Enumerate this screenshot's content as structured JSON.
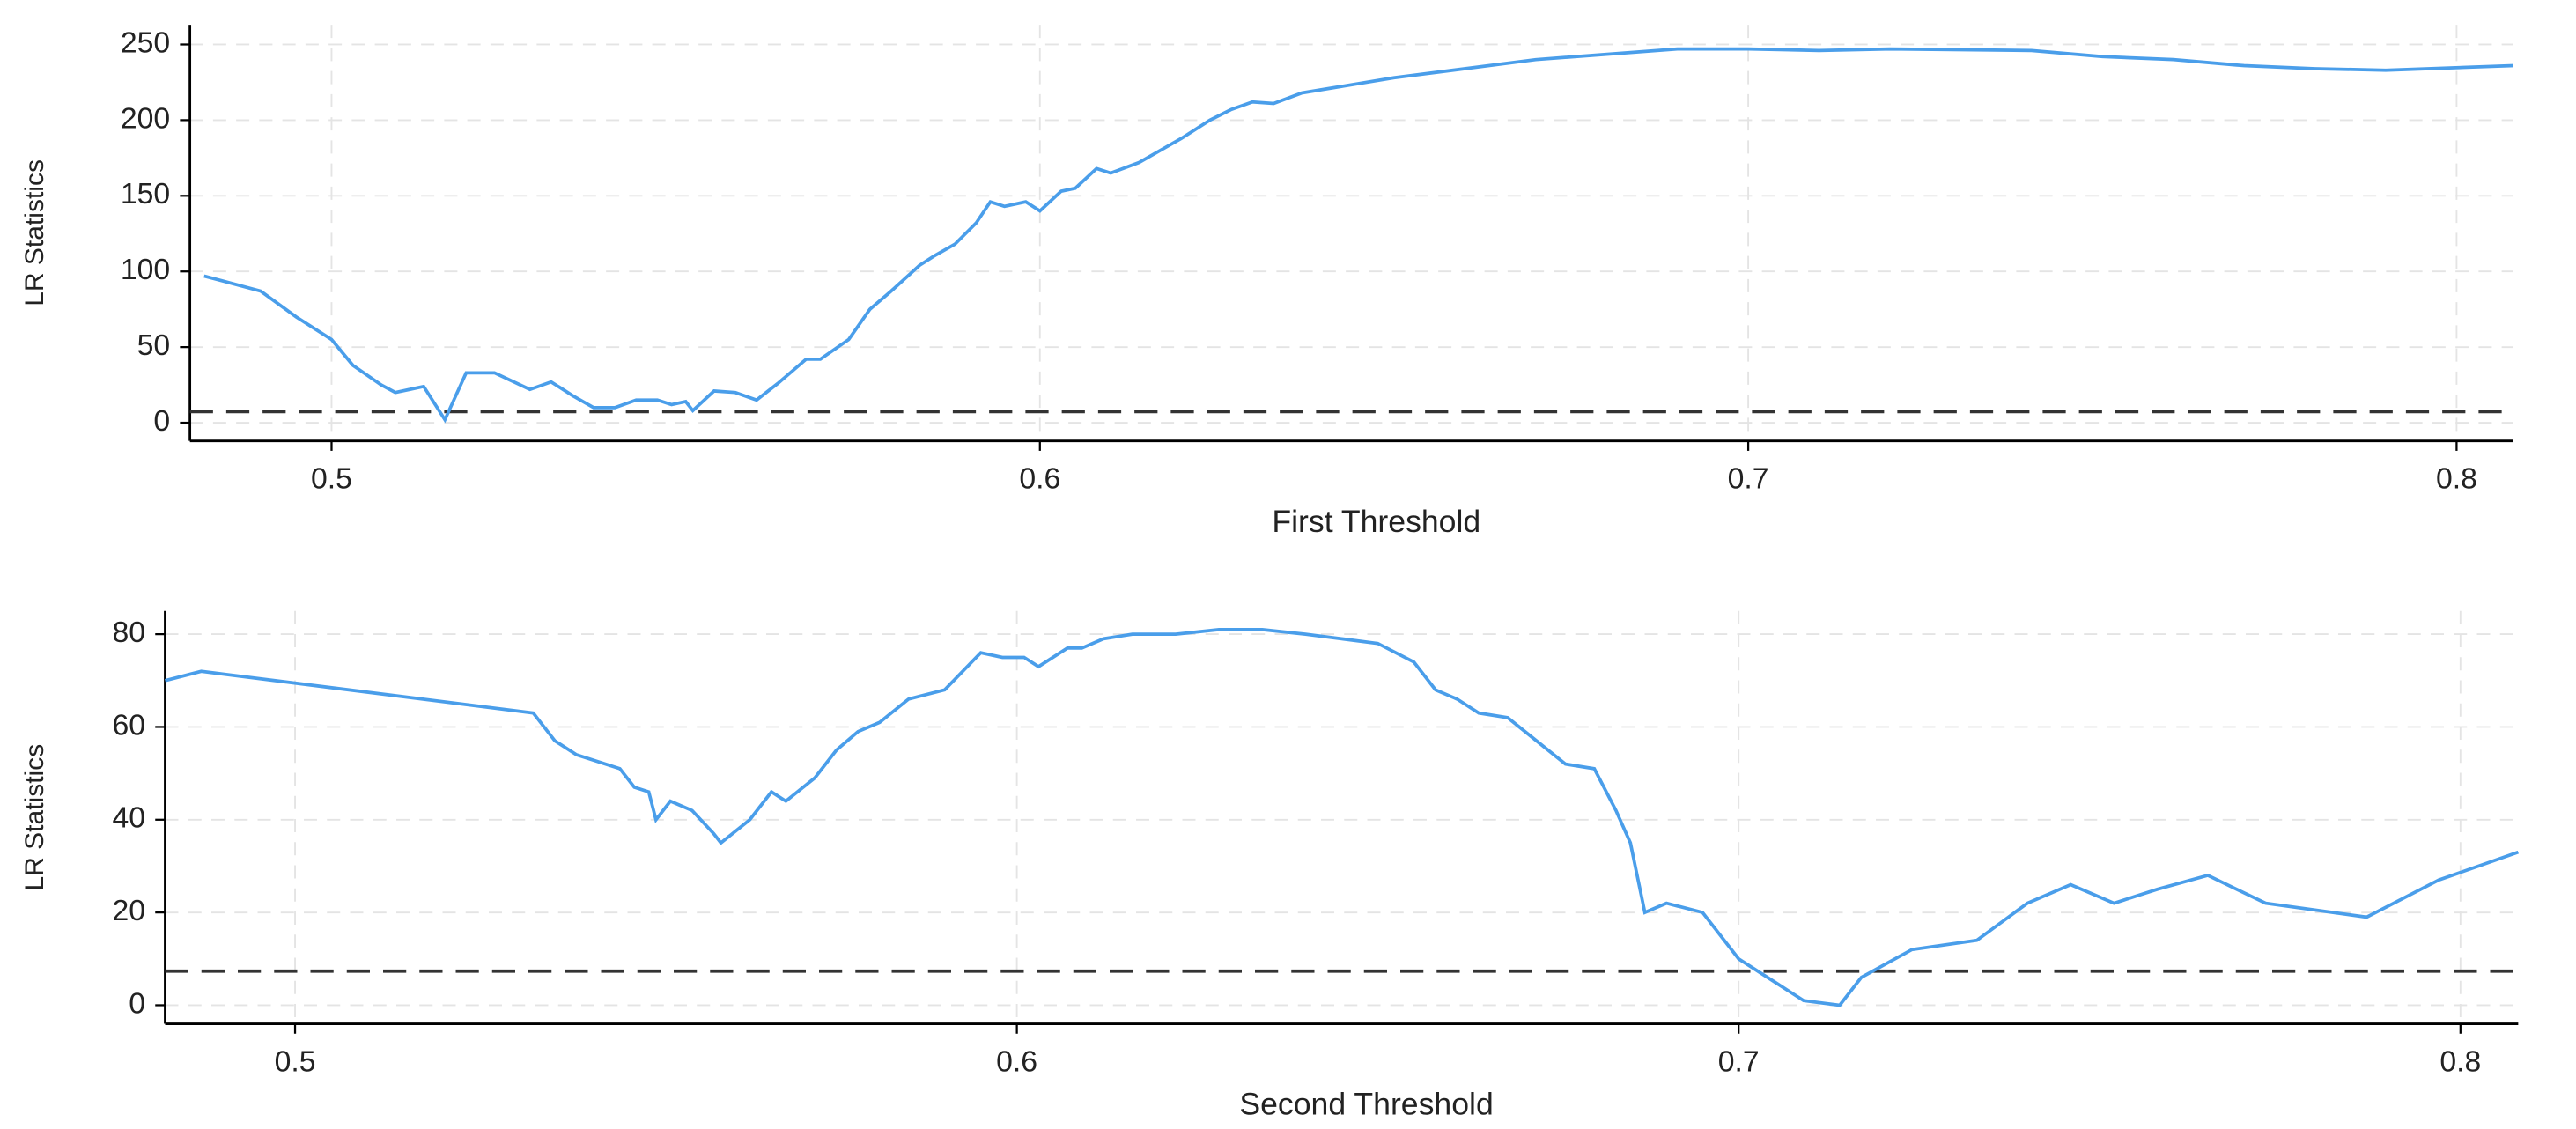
{
  "chart_data": [
    {
      "type": "line",
      "xlabel": "First Threshold",
      "ylabel": "LR Statistics",
      "color": "#4a9eea",
      "x": [
        0.482,
        0.49,
        0.495,
        0.5,
        0.503,
        0.507,
        0.509,
        0.511,
        0.513,
        0.516,
        0.519,
        0.523,
        0.528,
        0.531,
        0.534,
        0.537,
        0.54,
        0.543,
        0.546,
        0.548,
        0.55,
        0.551,
        0.554,
        0.557,
        0.56,
        0.563,
        0.567,
        0.569,
        0.573,
        0.576,
        0.579,
        0.583,
        0.585,
        0.588,
        0.591,
        0.593,
        0.595,
        0.598,
        0.6,
        0.603,
        0.605,
        0.608,
        0.61,
        0.614,
        0.617,
        0.62,
        0.624,
        0.627,
        0.63,
        0.633,
        0.637,
        0.65,
        0.67,
        0.69,
        0.7,
        0.71,
        0.72,
        0.74,
        0.75,
        0.76,
        0.77,
        0.78,
        0.79,
        0.808
      ],
      "values": [
        97,
        87,
        70,
        55,
        38,
        25,
        20,
        22,
        24,
        2,
        33,
        33,
        22,
        27,
        18,
        10,
        10,
        15,
        15,
        12,
        14,
        8,
        21,
        20,
        15,
        26,
        42,
        42,
        55,
        75,
        87,
        104,
        110,
        118,
        132,
        146,
        143,
        146,
        140,
        153,
        155,
        168,
        165,
        172,
        180,
        188,
        200,
        207,
        212,
        211,
        218,
        228,
        240,
        247,
        247,
        246,
        247,
        246,
        242,
        240,
        236,
        234,
        233,
        236
      ],
      "hline": 7.35,
      "xlim": [
        0.48,
        0.808
      ],
      "xticks": [
        0.5,
        0.6,
        0.7,
        0.8
      ],
      "ylim": [
        -12,
        263
      ],
      "yticks": [
        0,
        50,
        100,
        150,
        200,
        250
      ],
      "grid": true
    },
    {
      "type": "line",
      "xlabel": "Second Threshold",
      "ylabel": "LR Statistics",
      "color": "#4a9eea",
      "x": [
        0.482,
        0.487,
        0.533,
        0.536,
        0.539,
        0.545,
        0.547,
        0.549,
        0.55,
        0.552,
        0.555,
        0.558,
        0.559,
        0.563,
        0.566,
        0.568,
        0.572,
        0.575,
        0.578,
        0.581,
        0.585,
        0.59,
        0.595,
        0.598,
        0.601,
        0.603,
        0.607,
        0.609,
        0.612,
        0.616,
        0.622,
        0.628,
        0.634,
        0.64,
        0.645,
        0.65,
        0.655,
        0.658,
        0.661,
        0.664,
        0.668,
        0.672,
        0.676,
        0.68,
        0.683,
        0.685,
        0.687,
        0.69,
        0.695,
        0.7,
        0.705,
        0.709,
        0.714,
        0.717,
        0.724,
        0.733,
        0.74,
        0.746,
        0.752,
        0.758,
        0.765,
        0.773,
        0.787,
        0.797,
        0.808
      ],
      "values": [
        70,
        72,
        63,
        57,
        54,
        51,
        47,
        46,
        40,
        44,
        42,
        37,
        35,
        40,
        46,
        44,
        49,
        55,
        59,
        61,
        66,
        68,
        76,
        75,
        75,
        73,
        77,
        77,
        79,
        80,
        80,
        81,
        81,
        80,
        79,
        78,
        74,
        68,
        66,
        63,
        62,
        57,
        52,
        51,
        42,
        35,
        20,
        22,
        20,
        10,
        5,
        1,
        0,
        6,
        12,
        14,
        22,
        26,
        22,
        25,
        28,
        22,
        19,
        27,
        33
      ],
      "hline": 7.35,
      "xlim": [
        0.482,
        0.808
      ],
      "xticks": [
        0.5,
        0.6,
        0.7,
        0.8
      ],
      "ylim": [
        -4,
        85
      ],
      "yticks": [
        0,
        20,
        40,
        60,
        80
      ],
      "grid": true
    }
  ]
}
